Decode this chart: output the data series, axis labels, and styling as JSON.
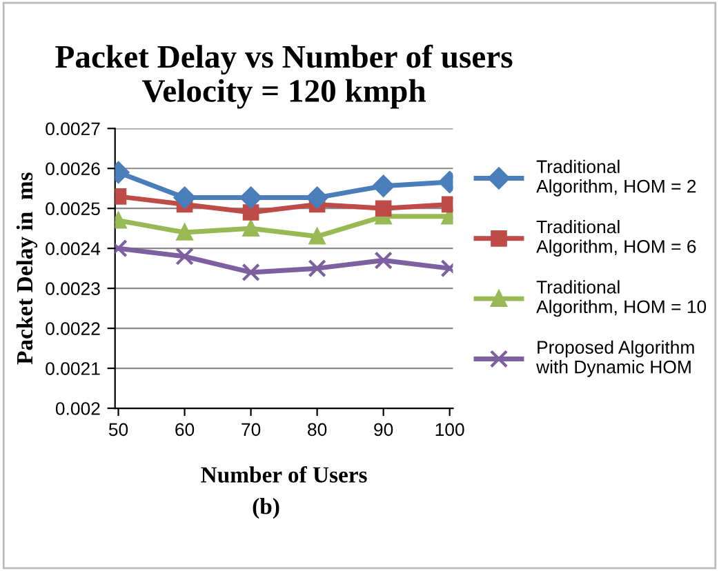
{
  "chart_data": {
    "type": "line",
    "title": "Packet Delay vs Number of users\nVelocity = 120 kmph",
    "xlabel": "Number of Users",
    "ylabel": "Packet Delay in  ms",
    "categories": [
      "50",
      "60",
      "70",
      "80",
      "90",
      "100"
    ],
    "series": [
      {
        "name": "Traditional\nAlgorithm, HOM = 2",
        "color": "#4a7ebb",
        "marker": "diamond",
        "values": [
          0.00259,
          0.002527,
          0.002527,
          0.002527,
          0.002556,
          0.002566
        ]
      },
      {
        "name": "Traditional\nAlgorithm, HOM = 6",
        "color": "#be4b48",
        "marker": "square",
        "values": [
          0.00253,
          0.00251,
          0.00249,
          0.00251,
          0.0025,
          0.00251
        ]
      },
      {
        "name": "Traditional\nAlgorithm, HOM = 10",
        "color": "#98b954",
        "marker": "triangle",
        "values": [
          0.00247,
          0.00244,
          0.00245,
          0.00243,
          0.00248,
          0.00248
        ]
      },
      {
        "name": "Proposed Algorithm\nwith Dynamic HOM",
        "color": "#7d60a0",
        "marker": "cross",
        "values": [
          0.0024,
          0.00238,
          0.00234,
          0.00235,
          0.00237,
          0.00235
        ]
      }
    ],
    "ylim": [
      0.002,
      0.0027
    ],
    "yticks": [
      0.002,
      0.0021,
      0.0022,
      0.0023,
      0.0024,
      0.0025,
      0.0026,
      0.0027
    ],
    "grid": "y",
    "legend": "right",
    "annotations": [
      "(b)"
    ]
  }
}
